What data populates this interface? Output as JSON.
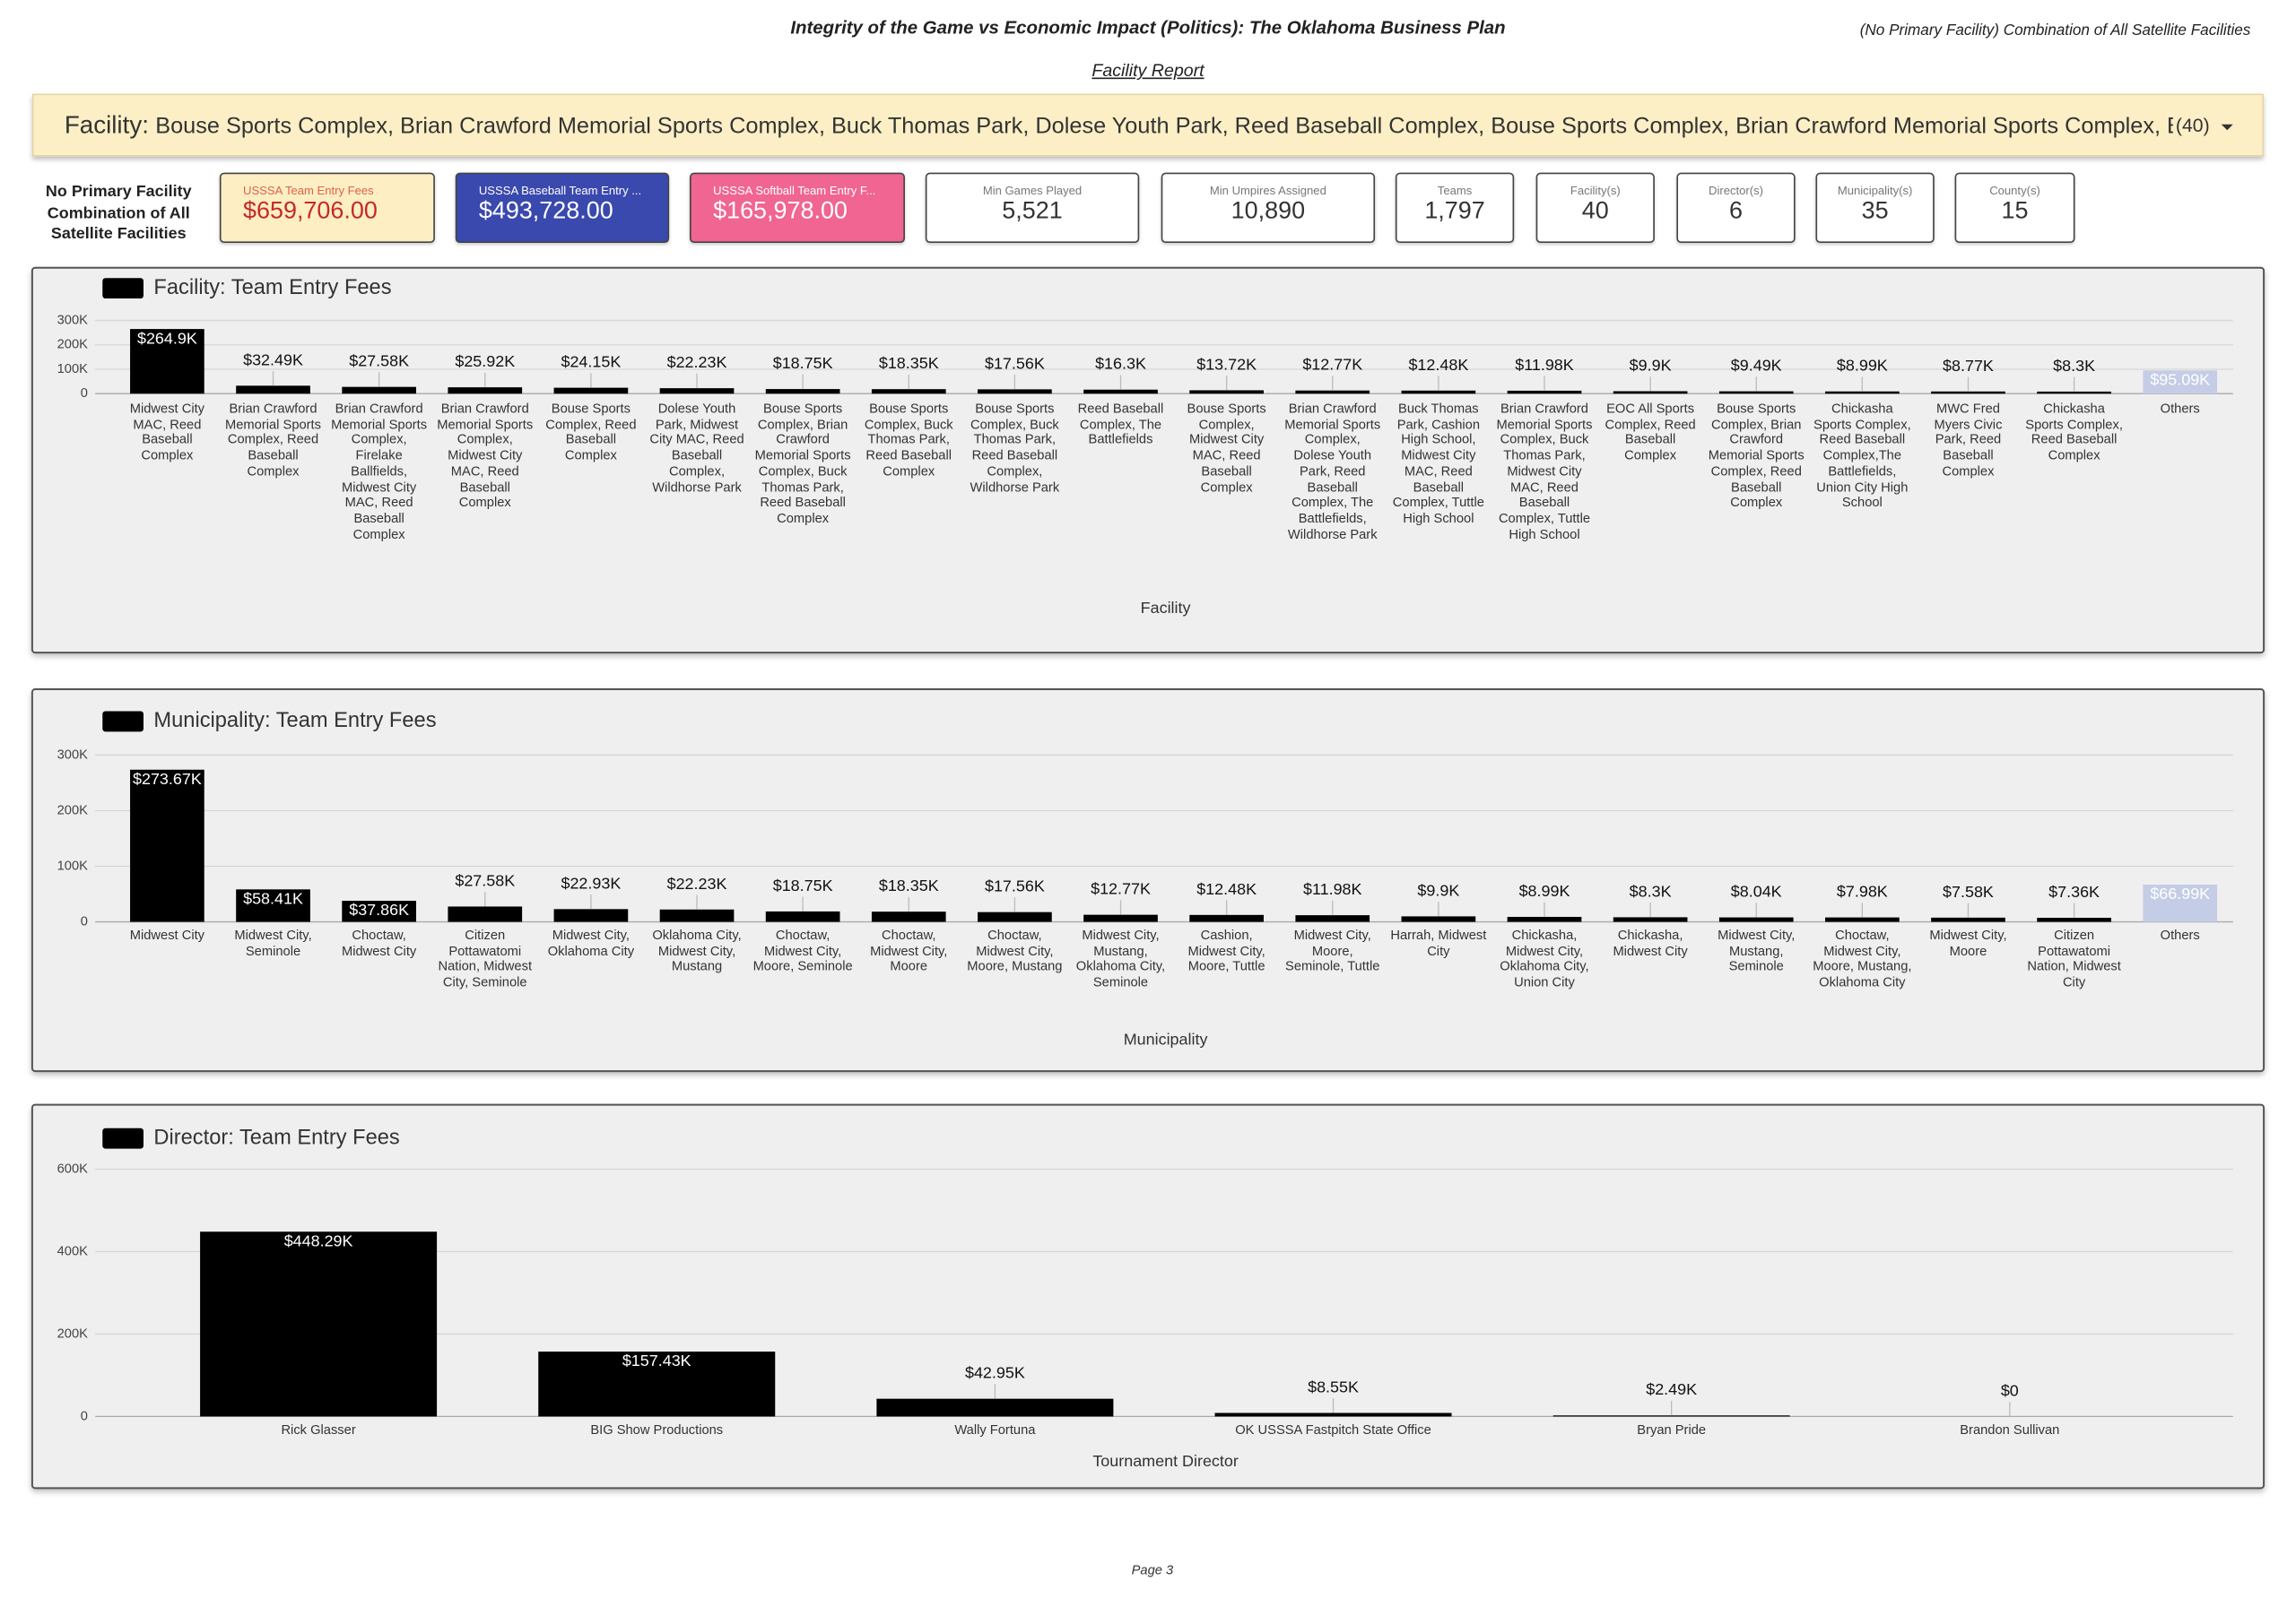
{
  "header": {
    "title": "Integrity of the Game vs Economic Impact (Politics): The Oklahoma Business Plan",
    "context": "(No Primary Facility) Combination of All Satellite Facilities",
    "subtitle": "Facility Report"
  },
  "filter": {
    "label": "Facility:",
    "value": "Bouse Sports Complex, Brian Crawford Memorial Sports Complex, Buck Thomas Park, Dolese Youth Park, Reed Baseball Complex, Bouse Sports Complex, Brian Crawford Memorial Sports Complex, Buck Th…",
    "count": "(40)"
  },
  "kpis": {
    "label": "No Primary Facility Combination of All Satellite Facilities",
    "cards": [
      {
        "title": "USSSA Team Entry Fees",
        "value": "$659,706.00"
      },
      {
        "title": "USSSA Baseball Team Entry ...",
        "value": "$493,728.00"
      },
      {
        "title": "USSSA Softball Team Entry F...",
        "value": "$165,978.00"
      },
      {
        "title": "Min Games Played",
        "value": "5,521"
      },
      {
        "title": "Min Umpires Assigned",
        "value": "10,890"
      },
      {
        "title": "Teams",
        "value": "1,797"
      },
      {
        "title": "Facility(s)",
        "value": "40"
      },
      {
        "title": "Director(s)",
        "value": "6"
      },
      {
        "title": "Municipality(s)",
        "value": "35"
      },
      {
        "title": "County(s)",
        "value": "15"
      }
    ]
  },
  "chart_data": [
    {
      "type": "bar",
      "title": "Facility: Team Entry Fees",
      "x_label": "Facility",
      "color": "#000000",
      "categories": [
        "Midwest City MAC, Reed Baseball Complex",
        "Brian Crawford Memorial Sports Complex, Reed Baseball Complex",
        "Brian Crawford Memorial Sports Complex, Firelake Ballfields, Midwest City MAC, Reed Baseball Complex",
        "Brian Crawford Memorial Sports Complex, Midwest City MAC, Reed Baseball Complex",
        "Bouse Sports Complex, Reed Baseball Complex",
        "Dolese Youth Park, Midwest City MAC, Reed Baseball Complex, Wildhorse Park",
        "Bouse Sports Complex, Brian Crawford Memorial Sports Complex, Buck Thomas Park, Reed Baseball Complex",
        "Bouse Sports Complex, Buck Thomas Park, Reed Baseball Complex",
        "Bouse Sports Complex, Buck Thomas Park, Reed Baseball Complex, Wildhorse Park",
        "Reed Baseball Complex, The Battlefields",
        "Bouse Sports Complex, Midwest City MAC, Reed Baseball Complex",
        "Brian Crawford Memorial Sports Complex, Dolese Youth Park, Reed Baseball Complex, The Battlefields, Wildhorse Park",
        "Buck Thomas Park, Cashion High School, Midwest City MAC, Reed Baseball Complex, Tuttle High School",
        "Brian Crawford Memorial Sports Complex, Buck Thomas Park, Midwest City MAC, Reed Baseball Complex, Tuttle High School",
        "EOC All Sports Complex, Reed Baseball Complex",
        "Bouse Sports Complex, Brian Crawford Memorial Sports Complex, Reed Baseball Complex",
        "Chickasha Sports Complex, Reed Baseball Complex,The Battlefields, Union City High School",
        "MWC Fred Myers Civic Park, Reed Baseball Complex",
        "Chickasha Sports Complex, Reed Baseball Complex",
        "Others"
      ],
      "values": [
        264900,
        32490,
        27580,
        25920,
        24150,
        22230,
        18750,
        18350,
        17560,
        16300,
        13720,
        12770,
        12480,
        11980,
        9900,
        9490,
        8990,
        8770,
        8300,
        95090
      ],
      "value_labels": [
        "$264.9K",
        "$32.49K",
        "$27.58K",
        "$25.92K",
        "$24.15K",
        "$22.23K",
        "$18.75K",
        "$18.35K",
        "$17.56K",
        "$16.3K",
        "$13.72K",
        "$12.77K",
        "$12.48K",
        "$11.98K",
        "$9.9K",
        "$9.49K",
        "$8.99K",
        "$8.77K",
        "$8.3K",
        "$95.09K"
      ],
      "colors": [
        "#000000",
        "#000000",
        "#000000",
        "#000000",
        "#000000",
        "#000000",
        "#000000",
        "#000000",
        "#000000",
        "#000000",
        "#000000",
        "#000000",
        "#000000",
        "#000000",
        "#000000",
        "#000000",
        "#000000",
        "#000000",
        "#000000",
        "#c5cde6"
      ],
      "ylim": [
        0,
        300000
      ],
      "yticks": [
        0,
        {
          "value": 100000,
          "label": "100K"
        },
        {
          "value": 200000,
          "label": "200K"
        },
        {
          "value": 300000,
          "label": "300K"
        }
      ],
      "grid": true
    },
    {
      "type": "bar",
      "title": "Municipality: Team Entry Fees",
      "x_label": "Municipality",
      "color": "#000000",
      "categories": [
        "Midwest City",
        "Midwest City, Seminole",
        "Choctaw, Midwest City",
        "Citizen Pottawatomi Nation, Midwest City, Seminole",
        "Midwest City, Oklahoma City",
        "Oklahoma City, Midwest City, Mustang",
        "Choctaw, Midwest City, Moore, Seminole",
        "Choctaw, Midwest City, Moore",
        "Choctaw, Midwest City, Moore, Mustang",
        "Midwest City, Mustang, Oklahoma City, Seminole",
        "Cashion, Midwest City, Moore, Tuttle",
        "Midwest City, Moore, Seminole, Tuttle",
        "Harrah, Midwest City",
        "Chickasha, Midwest City, Oklahoma City, Union City",
        "Chickasha, Midwest City",
        "Midwest City, Mustang, Seminole",
        "Choctaw, Midwest City, Moore, Mustang, Oklahoma City",
        "Midwest City, Moore",
        "Citizen Pottawatomi Nation, Midwest City",
        "Others"
      ],
      "values": [
        273670,
        58410,
        37860,
        27580,
        22930,
        22230,
        18750,
        18350,
        17560,
        12770,
        12480,
        11980,
        9900,
        8990,
        8300,
        8040,
        7980,
        7580,
        7360,
        66990
      ],
      "value_labels": [
        "$273.67K",
        "$58.41K",
        "$37.86K",
        "$27.58K",
        "$22.93K",
        "$22.23K",
        "$18.75K",
        "$18.35K",
        "$17.56K",
        "$12.77K",
        "$12.48K",
        "$11.98K",
        "$9.9K",
        "$8.99K",
        "$8.3K",
        "$8.04K",
        "$7.98K",
        "$7.58K",
        "$7.36K",
        "$66.99K"
      ],
      "colors": [
        "#000000",
        "#000000",
        "#000000",
        "#000000",
        "#000000",
        "#000000",
        "#000000",
        "#000000",
        "#000000",
        "#000000",
        "#000000",
        "#000000",
        "#000000",
        "#000000",
        "#000000",
        "#000000",
        "#000000",
        "#000000",
        "#000000",
        "#c5cde6"
      ],
      "ylim": [
        0,
        300000
      ],
      "yticks": [
        0,
        {
          "value": 100000,
          "label": "100K"
        },
        {
          "value": 200000,
          "label": "200K"
        },
        {
          "value": 300000,
          "label": "300K"
        }
      ],
      "grid": true
    },
    {
      "type": "bar",
      "title": "Director: Team Entry Fees",
      "x_label": "Tournament Director",
      "color": "#000000",
      "categories": [
        "Rick Glasser",
        "BIG Show Productions",
        "Wally Fortuna",
        "OK USSSA Fastpitch State Office",
        "Bryan Pride",
        "Brandon Sullivan"
      ],
      "values": [
        448290,
        157430,
        42950,
        8550,
        2490,
        0
      ],
      "value_labels": [
        "$448.29K",
        "$157.43K",
        "$42.95K",
        "$8.55K",
        "$2.49K",
        "$0"
      ],
      "colors": [
        "#000000",
        "#000000",
        "#000000",
        "#000000",
        "#000000",
        "#000000"
      ],
      "ylim": [
        0,
        600000
      ],
      "yticks": [
        0,
        {
          "value": 200000,
          "label": "200K"
        },
        {
          "value": 400000,
          "label": "400K"
        },
        {
          "value": 600000,
          "label": "600K"
        }
      ],
      "grid": true
    }
  ],
  "footer": "Page 3"
}
